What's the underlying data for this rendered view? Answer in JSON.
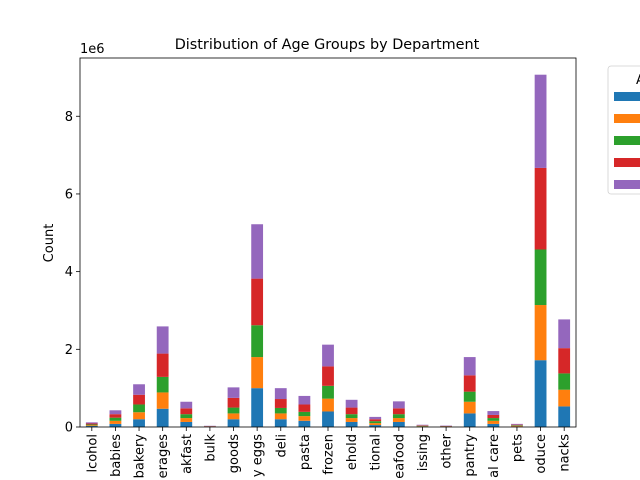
{
  "chart_data": {
    "type": "bar",
    "stacked": true,
    "title": "Distribution of Age Groups by Department",
    "xlabel": "",
    "ylabel": "Count",
    "y_offset_label": "1e6",
    "ylim": [
      0,
      9.5
    ],
    "y_ticks": [
      0,
      2,
      4,
      6,
      8
    ],
    "grid": false,
    "legend": {
      "placement": "right, outside plot area (clipped)",
      "title": "A"
    },
    "categories": [
      "lcohol",
      "babies",
      "bakery",
      "erages",
      "akfast",
      "bulk",
      "goods",
      "y eggs",
      "deli",
      "pasta",
      "frozen",
      "ehold",
      "tional",
      "eafood",
      "issing",
      "other",
      "pantry",
      "al care",
      "pets",
      "oduce",
      "nacks"
    ],
    "series": [
      {
        "color": "#1f77b4",
        "values": [
          0.025,
          0.08,
          0.2,
          0.47,
          0.13,
          0.006,
          0.2,
          1.0,
          0.2,
          0.16,
          0.4,
          0.13,
          0.05,
          0.13,
          0.012,
          0.007,
          0.35,
          0.08,
          0.015,
          1.72,
          0.53
        ]
      },
      {
        "color": "#ff7f0e",
        "values": [
          0.02,
          0.08,
          0.18,
          0.42,
          0.1,
          0.005,
          0.15,
          0.8,
          0.15,
          0.12,
          0.33,
          0.1,
          0.05,
          0.1,
          0.01,
          0.006,
          0.3,
          0.08,
          0.015,
          1.42,
          0.43
        ]
      },
      {
        "color": "#2ca02c",
        "values": [
          0.02,
          0.08,
          0.2,
          0.4,
          0.1,
          0.005,
          0.15,
          0.82,
          0.14,
          0.11,
          0.33,
          0.1,
          0.05,
          0.1,
          0.01,
          0.006,
          0.26,
          0.07,
          0.015,
          1.43,
          0.42
        ]
      },
      {
        "color": "#d62728",
        "values": [
          0.025,
          0.09,
          0.25,
          0.6,
          0.15,
          0.007,
          0.25,
          1.2,
          0.23,
          0.19,
          0.5,
          0.17,
          0.05,
          0.15,
          0.012,
          0.008,
          0.42,
          0.08,
          0.015,
          2.1,
          0.65
        ]
      },
      {
        "color": "#9467bd",
        "values": [
          0.03,
          0.1,
          0.27,
          0.7,
          0.17,
          0.008,
          0.27,
          1.4,
          0.28,
          0.22,
          0.56,
          0.2,
          0.06,
          0.18,
          0.014,
          0.009,
          0.47,
          0.1,
          0.02,
          2.4,
          0.74
        ]
      }
    ]
  }
}
